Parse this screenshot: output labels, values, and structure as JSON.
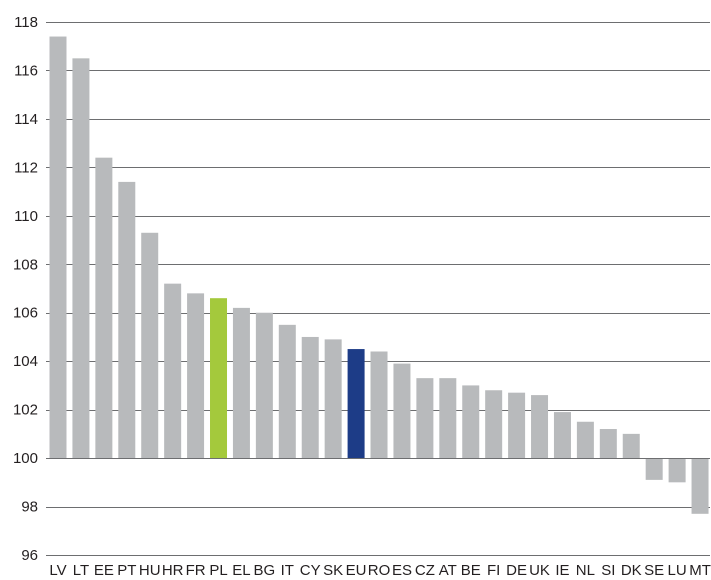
{
  "chart_data": {
    "type": "bar",
    "title": "",
    "xlabel": "",
    "ylabel": "",
    "categories": [
      "LV",
      "LT",
      "EE",
      "PT",
      "HU",
      "HR",
      "FR",
      "PL",
      "EL",
      "BG",
      "IT",
      "CY",
      "SK",
      "EU",
      "RO",
      "ES",
      "CZ",
      "AT",
      "BE",
      "FI",
      "DE",
      "UK",
      "IE",
      "NL",
      "SI",
      "DK",
      "SE",
      "LU",
      "MT"
    ],
    "values": [
      117.4,
      116.5,
      112.4,
      111.4,
      109.3,
      107.2,
      106.8,
      106.6,
      106.2,
      106.0,
      105.5,
      105.0,
      104.9,
      104.5,
      104.4,
      103.9,
      103.3,
      103.3,
      103.0,
      102.8,
      102.7,
      102.6,
      101.9,
      101.5,
      101.2,
      101.0,
      99.1,
      99.0,
      97.7
    ],
    "baseline": 100,
    "ylim": [
      96,
      118
    ],
    "yticks": [
      96,
      98,
      100,
      102,
      104,
      106,
      108,
      110,
      112,
      114,
      116,
      118
    ],
    "grid": true,
    "legend": "none",
    "colors": {
      "default": "#b8babc",
      "highlight_PL": "#a4c93c",
      "highlight_EU": "#1d3c87",
      "grid": "#6d6e70",
      "text": "#231f20"
    },
    "highlights": {
      "PL": "#a4c93c",
      "EU": "#1d3c87"
    }
  }
}
